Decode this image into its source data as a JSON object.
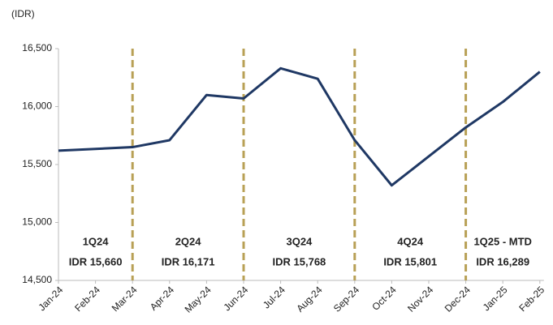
{
  "chart_data": {
    "type": "line",
    "y_label": "(IDR)",
    "categories": [
      "Jan-24",
      "Feb-24",
      "Mar-24",
      "Apr-24",
      "May-24",
      "Jun-24",
      "Jul-24",
      "Aug-24",
      "Sep-24",
      "Oct-24",
      "Nov-24",
      "Dec-24",
      "Jan-25",
      "Feb-25"
    ],
    "series": [
      {
        "color": "#1f3864",
        "values": [
          15620,
          15635,
          15650,
          15710,
          16100,
          16070,
          16330,
          16240,
          15710,
          15320,
          15570,
          15820,
          16040,
          16300
        ]
      }
    ],
    "ylim": [
      14500,
      16500
    ],
    "yticks": [
      {
        "value": 14500,
        "label": "14,500"
      },
      {
        "value": 15000,
        "label": "15,000"
      },
      {
        "value": 15500,
        "label": "15,500"
      },
      {
        "value": 16000,
        "label": "16,000"
      },
      {
        "value": 16500,
        "label": "16,500"
      }
    ],
    "annotations": [
      {
        "title": "1Q24",
        "label": "IDR 15,660"
      },
      {
        "title": "2Q24",
        "label": "IDR 16,171"
      },
      {
        "title": "3Q24",
        "label": "IDR 15,768"
      },
      {
        "title": "4Q24",
        "label": "IDR 15,801"
      },
      {
        "title": "1Q25 - MTD",
        "label": "IDR 16,289"
      }
    ],
    "separator_color": "#b8a055"
  }
}
